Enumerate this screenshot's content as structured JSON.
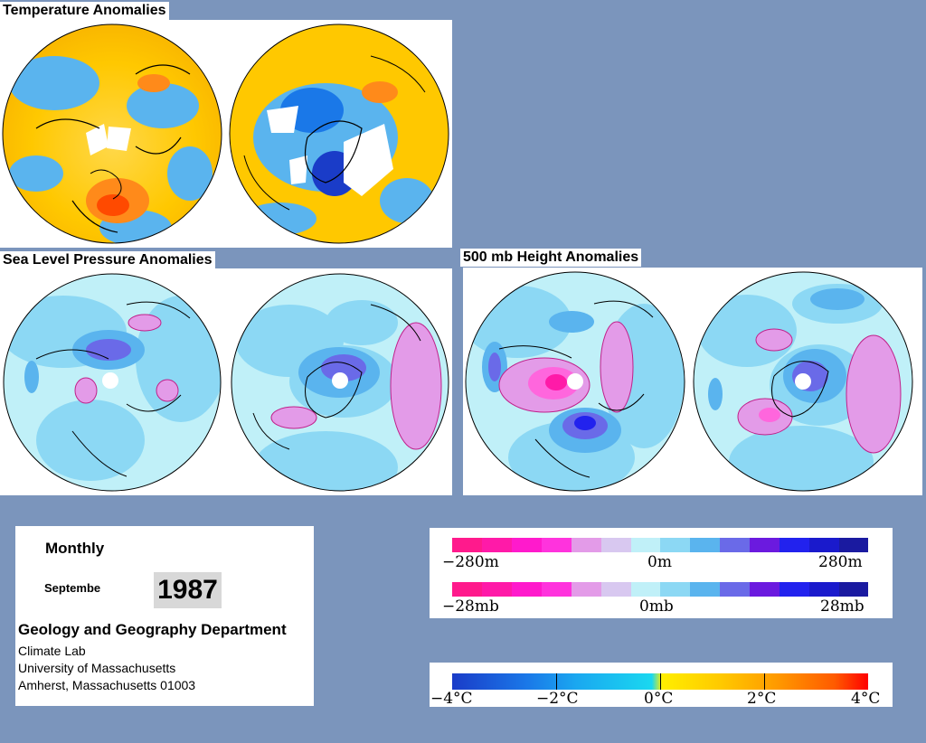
{
  "sections": {
    "temperature_title": "Temperature Anomalies",
    "slp_title": "Sea Level Pressure Anomalies",
    "height_title": "500 mb Height Anomalies"
  },
  "info": {
    "period_label": "Monthly",
    "month": "Septembe",
    "year": "1987",
    "department": "Geology and Geography Department",
    "lab": "Climate Lab",
    "university": "University of Massachusetts",
    "address": "Amherst, Massachusetts 01003"
  },
  "legends": {
    "height_scale": {
      "min_label": "−280m",
      "mid_label": "0m",
      "max_label": "280m"
    },
    "pressure_scale": {
      "min_label": "−28mb",
      "mid_label": "0mb",
      "max_label": "28mb"
    },
    "temperature_scale": {
      "labels": [
        "−4°C",
        "−2°C",
        "0°C",
        "2°C",
        "4°C"
      ]
    }
  },
  "colors": {
    "background": "#7b95bc",
    "anomaly_scale": [
      "#ff1a8c",
      "#ff1aa8",
      "#ff33cc",
      "#ff66dd",
      "#e39be8",
      "#d8c8f0",
      "#c0f0f8",
      "#8cd8f4",
      "#5ab4ee",
      "#6a6ae8",
      "#6b1adf",
      "#2222ee",
      "#1a1acc",
      "#1a1aa0"
    ],
    "temperature_scale": [
      "#1a3cc8",
      "#1a78e8",
      "#1aa8f0",
      "#1ad0f0",
      "#ffee00",
      "#ffd000",
      "#ffa800",
      "#ff7a00",
      "#ff4a00",
      "#ff0000"
    ]
  }
}
